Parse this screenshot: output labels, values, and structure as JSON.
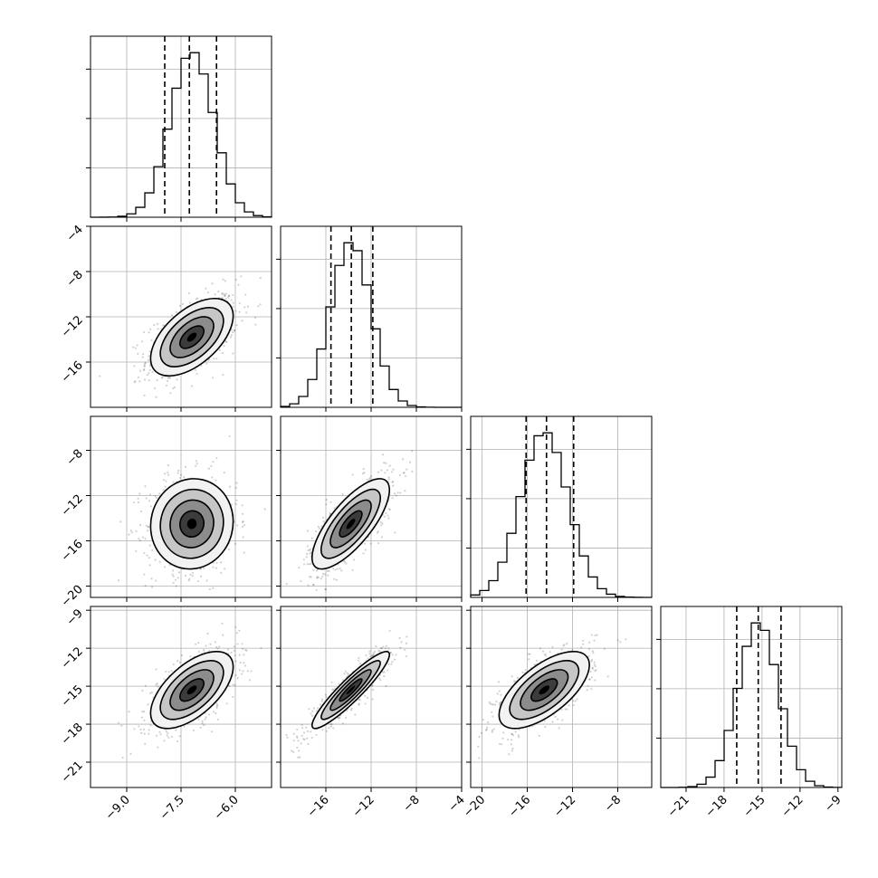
{
  "chart_data": {
    "type": "corner",
    "grid": true,
    "parameters": [
      {
        "range": [
          -10.0,
          -5.0
        ],
        "ticks": [
          -9.0,
          -7.5,
          -6.0
        ],
        "tick_labels": [
          "−9.0",
          "−7.5",
          "−6.0"
        ],
        "mean": -7.2,
        "sd": 0.6,
        "quantiles": [
          -7.95,
          -7.27,
          -6.52
        ]
      },
      {
        "range": [
          -20.0,
          -4.0
        ],
        "ticks": [
          -16,
          -12,
          -8,
          -4
        ],
        "tick_labels": [
          "−16",
          "−12",
          "−8",
          "−4"
        ],
        "mean": -13.8,
        "sd": 1.8,
        "quantiles": [
          -15.55,
          -13.75,
          -11.85
        ]
      },
      {
        "range": [
          -21.0,
          -5.0
        ],
        "ticks": [
          -20,
          -16,
          -12,
          -8
        ],
        "tick_labels": [
          "−20",
          "−16",
          "−12",
          "−8"
        ],
        "mean": -14.5,
        "sd": 2.1,
        "quantiles": [
          -16.1,
          -14.3,
          -11.9
        ]
      },
      {
        "range": [
          -23.0,
          -8.7
        ],
        "ticks": [
          -21,
          -18,
          -15,
          -12,
          -9
        ],
        "tick_labels": [
          "−21",
          "−18",
          "−15",
          "−12",
          "−9"
        ],
        "mean": -15.3,
        "sd": 1.6,
        "quantiles": [
          -17.0,
          -15.3,
          -13.5
        ]
      }
    ],
    "left_axis_ticks": {
      "row1": {
        "ticks": [
          -16,
          -12,
          -8,
          -4
        ],
        "tick_labels": [
          "−16",
          "−12",
          "−8",
          "−4"
        ]
      },
      "row2": {
        "ticks": [
          -20,
          -16,
          -12,
          -8
        ],
        "tick_labels": [
          "−20",
          "−16",
          "−12",
          "−8"
        ]
      },
      "row3": {
        "ticks": [
          -21,
          -18,
          -15,
          -12,
          -9
        ],
        "tick_labels": [
          "−21",
          "−18",
          "−15",
          "−12",
          "−9"
        ]
      }
    },
    "correlations": {
      "1-0": 0.55,
      "2-0": 0.05,
      "2-1": 0.75,
      "3-0": 0.6,
      "3-1": 0.92,
      "3-2": 0.65
    },
    "histogram_bins": 20,
    "scatter_points_per_panel": 700,
    "colors": {
      "line": "#000000",
      "grid": "#b0b0b0",
      "points": "#000000"
    }
  }
}
